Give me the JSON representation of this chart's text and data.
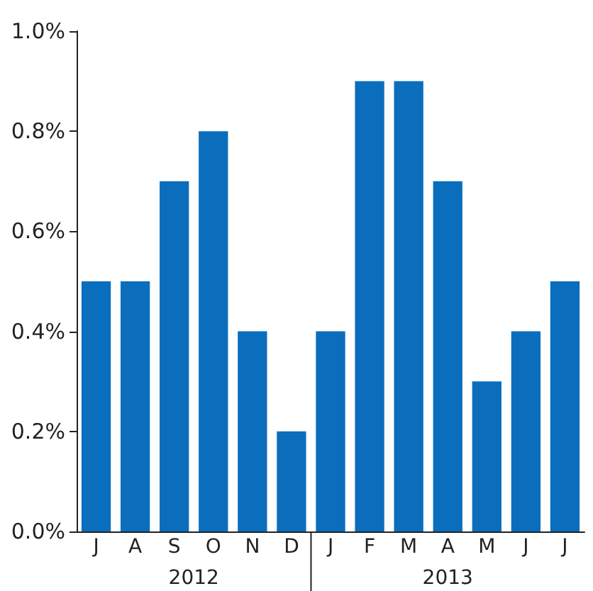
{
  "chart_data": {
    "type": "bar",
    "categories": [
      "J",
      "A",
      "S",
      "O",
      "N",
      "D",
      "J",
      "F",
      "M",
      "A",
      "M",
      "J",
      "J"
    ],
    "values": [
      0.5,
      0.5,
      0.7,
      0.8,
      0.4,
      0.2,
      0.4,
      0.9,
      0.9,
      0.7,
      0.3,
      0.4,
      0.5
    ],
    "color": "#0a6ebd",
    "ylim": [
      0,
      1
    ],
    "yticks": [
      {
        "value": 0,
        "label": "0.0%"
      },
      {
        "value": 0.2,
        "label": "0.2%"
      },
      {
        "value": 0.4,
        "label": "0.4%"
      },
      {
        "value": 0.6,
        "label": "0.6%"
      },
      {
        "value": 0.8,
        "label": "0.8%"
      },
      {
        "value": 1,
        "label": "1.0%"
      }
    ],
    "annotations": [
      "2012",
      "2013"
    ],
    "grid": false
  }
}
